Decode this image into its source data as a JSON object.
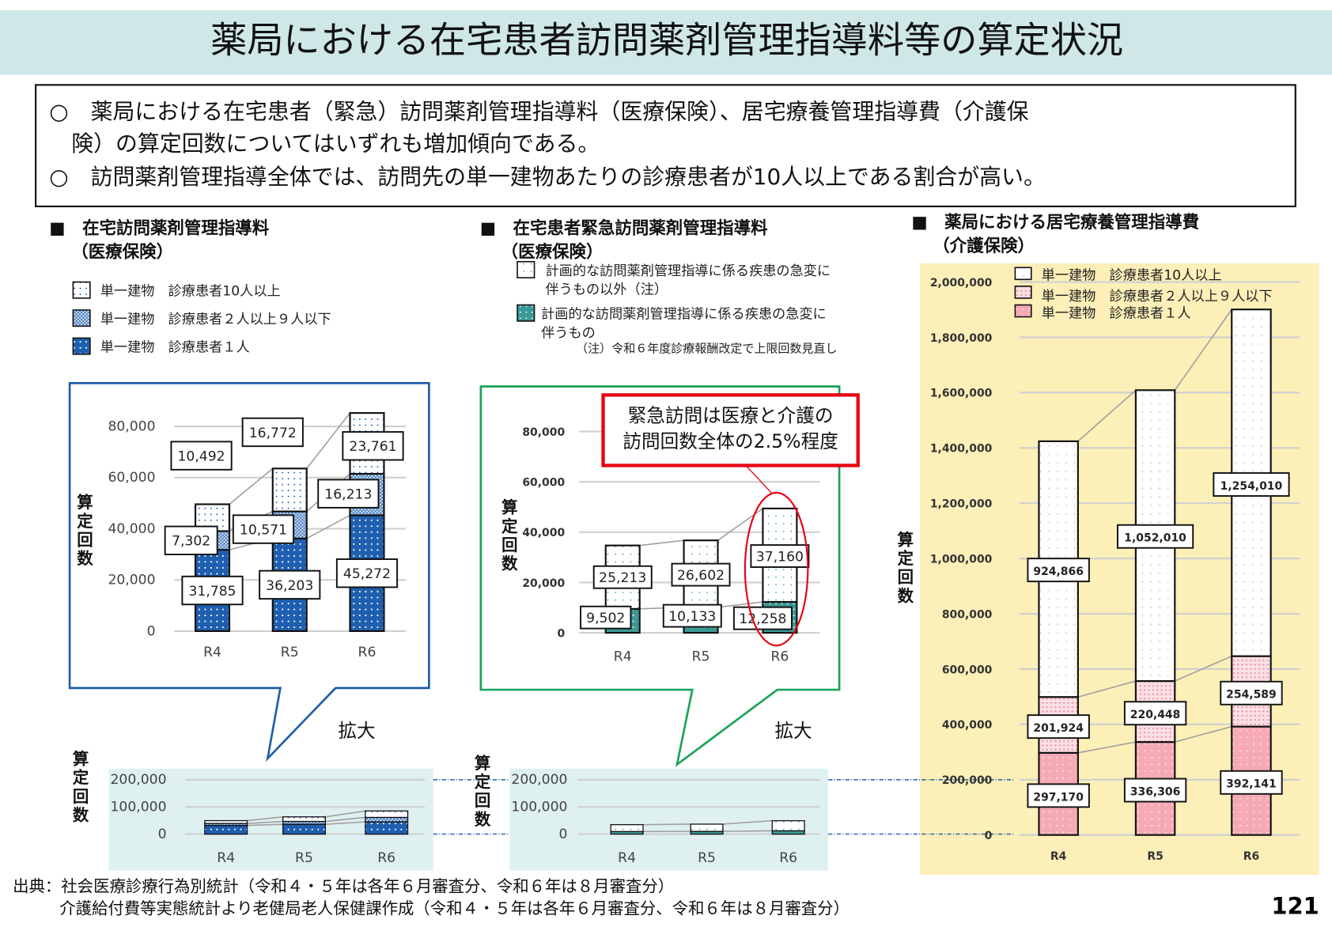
{
  "title": "薬局における在宅患者訪問薬剤管理指導料等の算定状況",
  "summary": [
    "○　薬局における在宅患者（緊急）訪問薬剤管理指導料（医療保険）、居宅療養管理指導費（介護保",
    "　険）の算定回数についてはいずれも増加傾向である。",
    "○　訪問薬剤管理指導全体では、訪問先の単一建物あたりの診療患者が10人以上である割合が高い。"
  ],
  "sections": [
    {
      "heading": "■　在宅訪問薬剤管理指導料",
      "subheading": "（医療保険）"
    },
    {
      "heading": "■　在宅患者緊急訪問薬剤管理指導料",
      "subheading": "（医療保険）"
    },
    {
      "heading": "■　薬局における居宅療養管理指導費",
      "subheading": "（介護保険）"
    }
  ],
  "legend1": [
    "単一建物　診療患者10人以上",
    "単一建物　診療患者２人以上９人以下",
    "単一建物　診療患者１人"
  ],
  "legend2": {
    "item1": [
      "計画的な訪問薬剤管理指導に係る疾患の急変に",
      "伴うもの以外（注）"
    ],
    "item2": [
      "計画的な訪問薬剤管理指導に係る疾患の急変に",
      "伴うもの"
    ],
    "note": "（注）令和６年度診療報酬改定で上限回数見直し"
  },
  "legend3": [
    "単一建物　診療患者10人以上",
    "単一建物　診療患者２人以上９人以下",
    "単一建物　診療患者１人"
  ],
  "callout": [
    "緊急訪問は医療と介護の",
    "訪問回数全体の2.5%程度"
  ],
  "zoom_label": "拡大",
  "ylabel": "算定回数",
  "footnotes": [
    "出典：社会医療診療行為別統計（令和４・５年は各年６月審査分、令和６年は８月審査分）",
    "介護給付費等実態統計より老健局老人保健課作成（令和４・５年は各年６月審査分、令和６年は８月審査分）"
  ],
  "page_number": "121",
  "colors": {
    "title_band": "#cfe7e7",
    "chart1_frame": "#1f5fa8",
    "chart2_frame": "#1aa35a",
    "chart3_bg": "#fcefb8",
    "mini_bg": "#dff0f0",
    "blue": "#1f5fb0",
    "teal": "#3a9a96",
    "pink": "#f5aab6",
    "callout_red": "#e60012"
  },
  "chart_data": [
    {
      "type": "bar",
      "stacked": true,
      "categories": [
        "R4",
        "R5",
        "R6"
      ],
      "ylabel": "算定回数",
      "ylim": [
        0,
        80000
      ],
      "yticks": [
        "0",
        "20,000",
        "40,000",
        "60,000",
        "80,000"
      ],
      "series": [
        {
          "name": "単一建物　診療患者１人",
          "values": [
            31785,
            36203,
            45272
          ],
          "labels": [
            "31,785",
            "36,203",
            "45,272"
          ]
        },
        {
          "name": "単一建物　診療患者２人以上９人以下",
          "values": [
            7302,
            10571,
            16213
          ],
          "labels": [
            "7,302",
            "10,571",
            "16,213"
          ]
        },
        {
          "name": "単一建物　診療患者10人以上",
          "values": [
            10492,
            16772,
            23761
          ],
          "labels": [
            "10,492",
            "16,772",
            "23,761"
          ]
        }
      ],
      "grid": true
    },
    {
      "type": "bar",
      "stacked": true,
      "categories": [
        "R4",
        "R5",
        "R6"
      ],
      "ylabel": "算定回数",
      "ylim": [
        0,
        80000
      ],
      "yticks": [
        "0",
        "20,000",
        "40,000",
        "60,000",
        "80,000"
      ],
      "series": [
        {
          "name": "計画的な訪問薬剤管理指導に係る疾患の急変に伴うもの",
          "values": [
            9502,
            10133,
            12258
          ],
          "labels": [
            "9,502",
            "10,133",
            "12,258"
          ]
        },
        {
          "name": "計画的な訪問薬剤管理指導に係る疾患の急変に伴うもの以外（注）",
          "values": [
            25213,
            26602,
            37160
          ],
          "labels": [
            "25,213",
            "26,602",
            "37,160"
          ]
        }
      ],
      "grid": true
    },
    {
      "type": "bar",
      "stacked": true,
      "categories": [
        "R4",
        "R5",
        "R6"
      ],
      "ylabel": "算定回数",
      "ylim": [
        0,
        2000000
      ],
      "yticks": [
        "0",
        "200,000",
        "400,000",
        "600,000",
        "800,000",
        "1,000,000",
        "1,200,000",
        "1,400,000",
        "1,600,000",
        "1,800,000",
        "2,000,000"
      ],
      "series": [
        {
          "name": "単一建物　診療患者１人",
          "values": [
            297170,
            336306,
            392141
          ],
          "labels": [
            "297,170",
            "336,306",
            "392,141"
          ]
        },
        {
          "name": "単一建物　診療患者２人以上９人以下",
          "values": [
            201924,
            220448,
            254589
          ],
          "labels": [
            "201,924",
            "220,448",
            "254,589"
          ]
        },
        {
          "name": "単一建物　診療患者10人以上",
          "values": [
            924866,
            1052010,
            1254010
          ],
          "labels": [
            "924,866",
            "1,052,010",
            "1,254,010"
          ]
        }
      ],
      "grid": true
    },
    {
      "type": "bar",
      "stacked": true,
      "categories": [
        "R4",
        "R5",
        "R6"
      ],
      "ylabel": "算定回数",
      "ylim": [
        0,
        200000
      ],
      "yticks": [
        "0",
        "100,000",
        "200,000"
      ],
      "series": [
        {
          "values": [
            31785,
            36203,
            45272
          ]
        },
        {
          "values": [
            7302,
            10571,
            16213
          ]
        },
        {
          "values": [
            10492,
            16772,
            23761
          ]
        }
      ],
      "grid": true
    },
    {
      "type": "bar",
      "stacked": true,
      "categories": [
        "R4",
        "R5",
        "R6"
      ],
      "ylabel": "算定回数",
      "ylim": [
        0,
        200000
      ],
      "yticks": [
        "0",
        "100,000",
        "200,000"
      ],
      "series": [
        {
          "values": [
            9502,
            10133,
            12258
          ]
        },
        {
          "values": [
            25213,
            26602,
            37160
          ]
        }
      ],
      "grid": true
    }
  ]
}
